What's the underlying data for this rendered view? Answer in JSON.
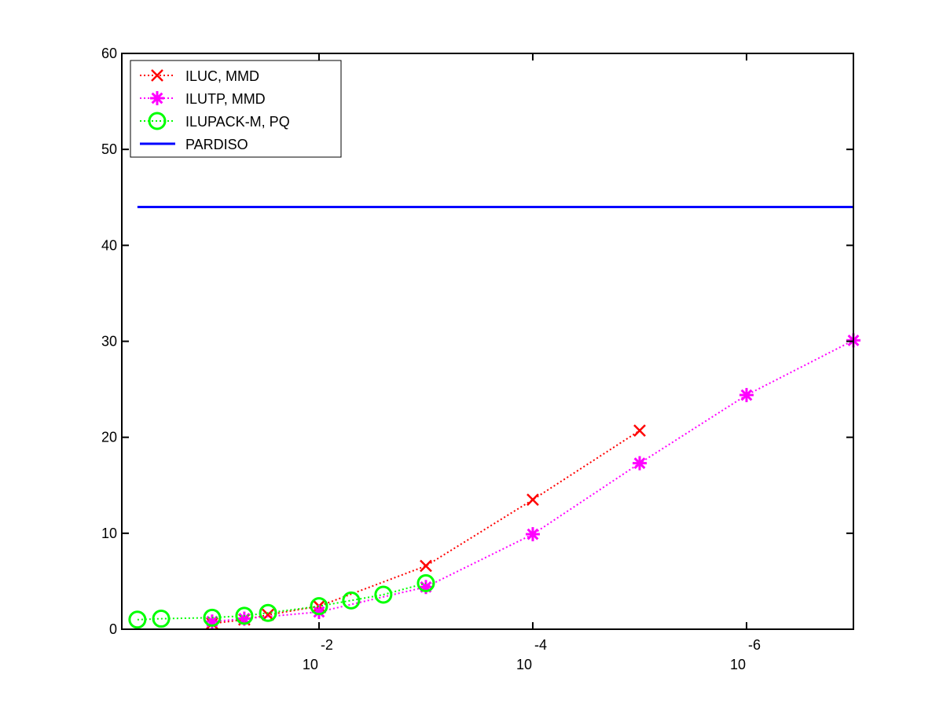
{
  "chart_data": {
    "type": "line",
    "title": "",
    "xlabel": "",
    "ylabel": "",
    "x_scale": "log",
    "x_direction": "reversed",
    "xlim": [
      0.7,
      1e-07
    ],
    "ylim": [
      0,
      60
    ],
    "x_ticks": [
      {
        "value": 0.01,
        "base": "10",
        "exponent": "-2"
      },
      {
        "value": 0.0001,
        "base": "10",
        "exponent": "-4"
      },
      {
        "value": 1e-06,
        "base": "10",
        "exponent": "-6"
      }
    ],
    "y_ticks": [
      0,
      10,
      20,
      30,
      40,
      50,
      60
    ],
    "grid": false,
    "legend_position": "top-left",
    "series": [
      {
        "name": "ILUC, MMD",
        "color": "#ff0000",
        "line_style": "dotted",
        "marker": "x",
        "x": [
          0.1,
          0.05,
          0.03,
          0.01,
          0.001,
          0.0001,
          1e-05
        ],
        "y": [
          0.6,
          1.0,
          1.5,
          2.4,
          6.6,
          13.5,
          20.7
        ]
      },
      {
        "name": "ILUTP, MMD",
        "color": "#ff00ff",
        "line_style": "dotted",
        "marker": "asterisk",
        "x": [
          0.1,
          0.05,
          0.01,
          0.001,
          0.0001,
          1e-05,
          1e-06,
          1e-07
        ],
        "y": [
          0.8,
          1.1,
          1.8,
          4.4,
          9.9,
          17.3,
          24.4,
          30.1
        ]
      },
      {
        "name": "ILUPACK-M, PQ",
        "color": "#00ff00",
        "line_style": "dotted",
        "marker": "circle",
        "x": [
          0.5,
          0.3,
          0.1,
          0.05,
          0.03,
          0.01,
          0.005,
          0.0025,
          0.001
        ],
        "y": [
          1.0,
          1.1,
          1.2,
          1.4,
          1.7,
          2.4,
          3.0,
          3.6,
          4.8
        ]
      },
      {
        "name": "PARDISO",
        "color": "#0000ff",
        "line_style": "solid",
        "marker": "none",
        "x": [
          0.5,
          1e-07
        ],
        "y": [
          44,
          44
        ]
      }
    ]
  }
}
